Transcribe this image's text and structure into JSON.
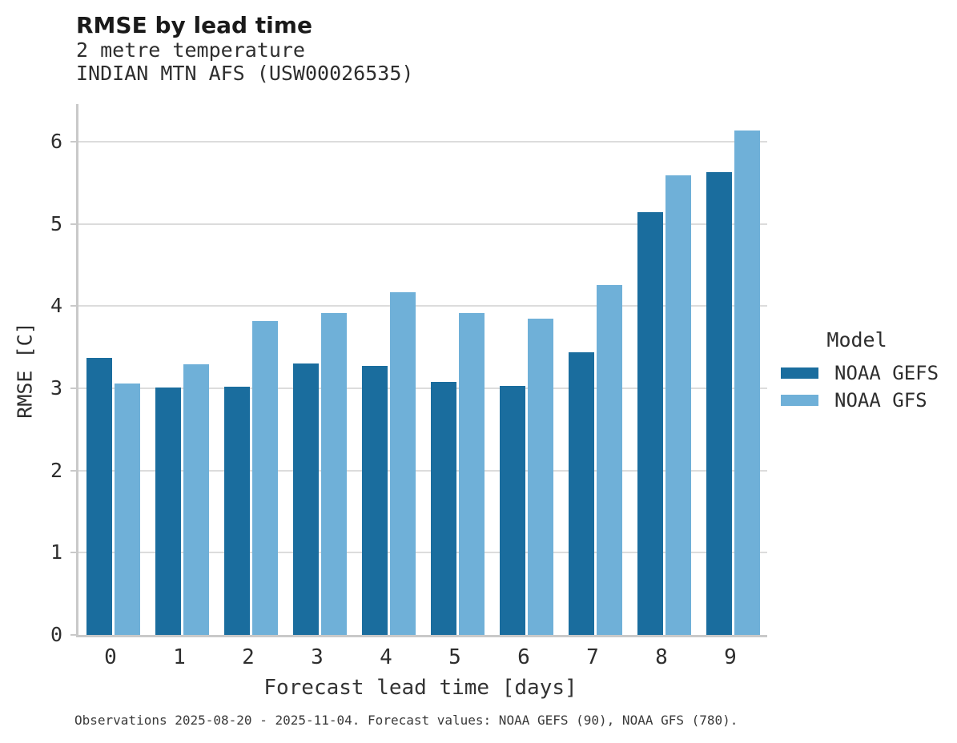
{
  "header": {
    "title": "RMSE by lead time",
    "subtitle_line1": "2 metre temperature",
    "subtitle_line2": "INDIAN MTN AFS (USW00026535)"
  },
  "chart_data": {
    "type": "bar",
    "title": "RMSE by lead time",
    "subtitle": [
      "2 metre temperature",
      "INDIAN MTN AFS (USW00026535)"
    ],
    "categories": [
      "0",
      "1",
      "2",
      "3",
      "4",
      "5",
      "6",
      "7",
      "8",
      "9"
    ],
    "series": [
      {
        "name": "NOAA GEFS",
        "color": "#1A6D9E",
        "values": [
          3.37,
          3.01,
          3.02,
          3.3,
          3.27,
          3.08,
          3.03,
          3.44,
          5.14,
          5.63
        ]
      },
      {
        "name": "NOAA GFS",
        "color": "#6FB0D8",
        "values": [
          3.06,
          3.29,
          3.82,
          3.92,
          4.17,
          3.92,
          3.85,
          4.26,
          5.59,
          6.14
        ]
      }
    ],
    "xlabel": "Forecast lead time [days]",
    "ylabel": "RMSE [C]",
    "ylim": [
      0,
      6.46
    ],
    "yticks": [
      0,
      1,
      2,
      3,
      4,
      5,
      6
    ],
    "grid": true,
    "legend_title": "Model",
    "legend_position": "right"
  },
  "legend": {
    "title": "Model",
    "items": [
      {
        "label": "NOAA GEFS",
        "color": "#1A6D9E"
      },
      {
        "label": "NOAA GFS",
        "color": "#6FB0D8"
      }
    ]
  },
  "caption": "Observations 2025-08-20 - 2025-11-04. Forecast values: NOAA GEFS (90), NOAA GFS (780)."
}
